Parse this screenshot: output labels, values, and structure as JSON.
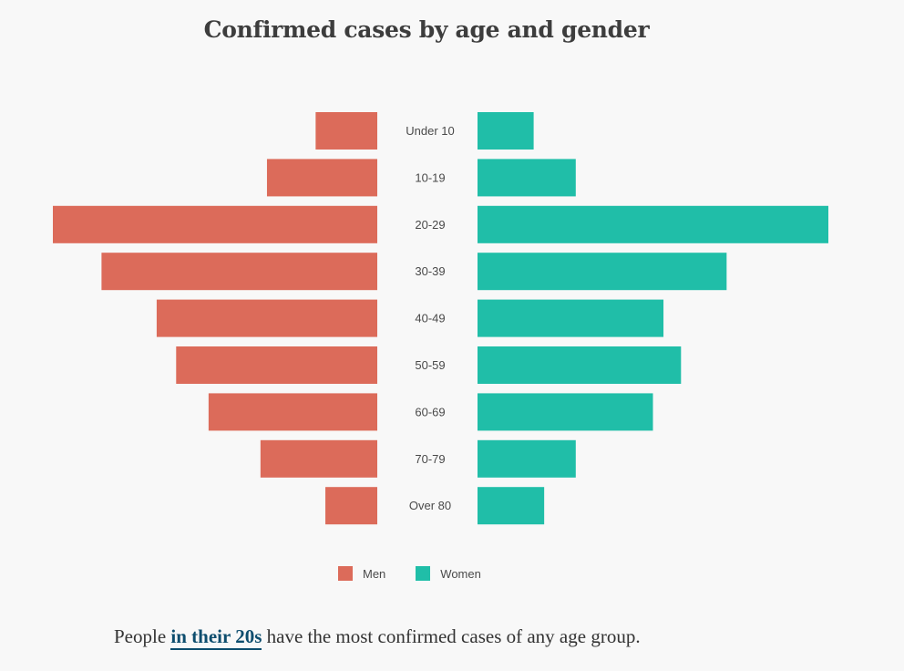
{
  "colors": {
    "men": "#dc6b5a",
    "women": "#20bea8",
    "background": "#f8f8f8",
    "link": "#0d4d6e"
  },
  "chart_data": {
    "type": "bar",
    "orientation": "horizontal-diverging",
    "title": "Confirmed cases by age and gender",
    "categories": [
      "Under 10",
      "10-19",
      "20-29",
      "30-39",
      "40-49",
      "50-59",
      "60-69",
      "70-79",
      "Over 80"
    ],
    "series": [
      {
        "name": "Men",
        "values": [
          19,
          34,
          100,
          85,
          68,
          62,
          52,
          36,
          16
        ]
      },
      {
        "name": "Women",
        "values": [
          16,
          28,
          100,
          71,
          53,
          58,
          50,
          28,
          19
        ]
      }
    ],
    "xlabel": "",
    "ylabel": "",
    "units": "relative case count (largest bar = 100, axis not labeled)",
    "xlim": [
      0,
      100
    ],
    "grid": false,
    "legend_position": "bottom-center"
  },
  "legend": {
    "men_label": "Men",
    "women_label": "Women"
  },
  "caption": {
    "before": "People ",
    "link_text": "in their 20s",
    "after": " have the most confirmed cases of any age group."
  }
}
